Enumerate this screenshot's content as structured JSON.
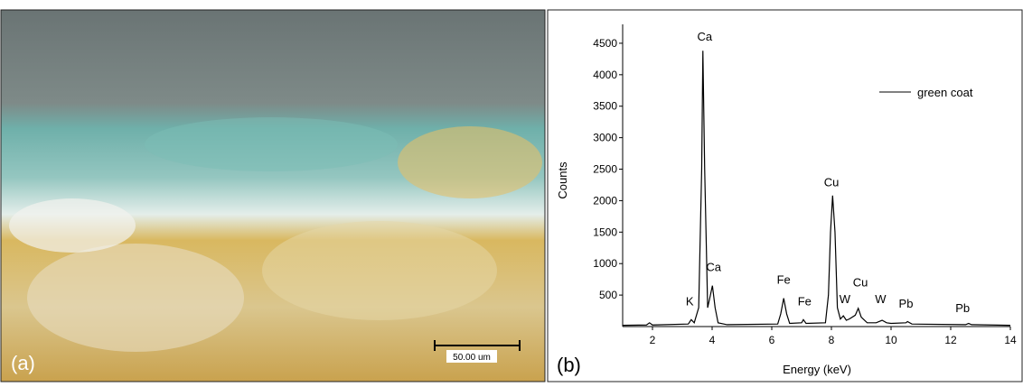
{
  "panels": {
    "a": {
      "label": "(a)",
      "scale_bar": "50.00 um"
    },
    "b": {
      "label": "(b)"
    }
  },
  "chart_data": {
    "type": "line",
    "x_label": "Energy (keV)",
    "y_label": "Counts",
    "x": [
      1.0,
      1.8,
      1.9,
      2.0,
      3.2,
      3.3,
      3.4,
      3.55,
      3.65,
      3.69,
      3.75,
      3.85,
      3.92,
      4.01,
      4.1,
      4.2,
      4.5,
      6.2,
      6.3,
      6.4,
      6.5,
      6.6,
      7.0,
      7.06,
      7.15,
      7.8,
      7.9,
      7.97,
      8.04,
      8.12,
      8.2,
      8.3,
      8.4,
      8.5,
      8.6,
      8.8,
      8.9,
      9.0,
      9.2,
      9.5,
      9.7,
      9.85,
      10.0,
      10.5,
      10.55,
      10.7,
      12.5,
      12.6,
      12.7,
      14.0
    ],
    "series": [
      {
        "name": "green coat",
        "color": "#000000",
        "values": [
          20,
          25,
          60,
          25,
          40,
          110,
          60,
          300,
          2500,
          4380,
          2500,
          300,
          450,
          650,
          300,
          60,
          30,
          40,
          200,
          450,
          200,
          50,
          60,
          110,
          50,
          60,
          500,
          1500,
          2080,
          1500,
          300,
          120,
          170,
          100,
          120,
          180,
          290,
          150,
          60,
          60,
          100,
          60,
          50,
          60,
          80,
          40,
          30,
          50,
          30,
          20
        ]
      }
    ],
    "annotations": [
      {
        "text": "K",
        "x": 3.25,
        "y": 340
      },
      {
        "text": "Ca",
        "x": 3.75,
        "y": 4540
      },
      {
        "text": "Ca",
        "x": 4.05,
        "y": 880
      },
      {
        "text": "Fe",
        "x": 6.4,
        "y": 680
      },
      {
        "text": "Fe",
        "x": 7.1,
        "y": 340
      },
      {
        "text": "Cu",
        "x": 8.0,
        "y": 2230
      },
      {
        "text": "W",
        "x": 8.45,
        "y": 370
      },
      {
        "text": "Cu",
        "x": 8.97,
        "y": 640
      },
      {
        "text": "W",
        "x": 9.65,
        "y": 370
      },
      {
        "text": "Pb",
        "x": 10.5,
        "y": 300
      },
      {
        "text": "Pb",
        "x": 12.4,
        "y": 230
      }
    ],
    "xlim": [
      1,
      14
    ],
    "xticks": [
      2,
      4,
      6,
      8,
      10,
      12,
      14
    ],
    "ylim": [
      0,
      4800
    ],
    "yticks": [
      500,
      1000,
      1500,
      2000,
      2500,
      3000,
      3500,
      4000,
      4500
    ],
    "legend": "upper right"
  }
}
